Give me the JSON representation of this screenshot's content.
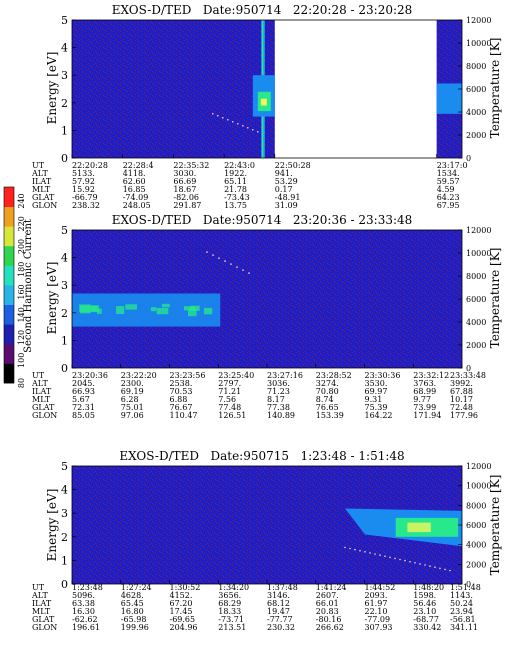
{
  "colorbar": {
    "label": "Second Harmonic Current",
    "ticks": [
      "240",
      "220",
      "200",
      "180",
      "160",
      "140",
      "120",
      "100",
      "80"
    ],
    "colors": [
      "#000000",
      "#5b0a6e",
      "#1d1fae",
      "#1f5ee0",
      "#2ab3e6",
      "#25e0c0",
      "#2fd54d",
      "#d7e63b",
      "#f0a020",
      "#ff2020"
    ]
  },
  "colors": {
    "background": "#1c1ec8",
    "band": "#1a8cf0",
    "core": "#27e88a",
    "speckle": "#b01818",
    "hot": "#f1f55e"
  },
  "chart_data": [
    {
      "type": "heatmap",
      "title": "EXOS-D/TED   Date:950714   22:20:28 - 23:20:28",
      "ylabel": "Energy [eV]",
      "ylabel_right": "Temperature [K]",
      "ylim": [
        0,
        5
      ],
      "ylim_right": [
        0,
        12000
      ],
      "yticks": [
        "0",
        "1",
        "2",
        "3",
        "4",
        "5"
      ],
      "yticks_right": [
        "0",
        "2000",
        "4000",
        "6000",
        "8000",
        "10000",
        "12000"
      ],
      "x_ticks": [
        "22:20:28",
        "22:28:4",
        "22:35:32",
        "22:43:0",
        "22:50:28",
        "23:17:0"
      ],
      "data_gap": [
        "22:50:28",
        "23:17:0"
      ],
      "spike_time": "22:35:32",
      "enhanced_region": {
        "time": "22:50:28",
        "energy_range": [
          1.5,
          3.0
        ]
      },
      "rows": [
        {
          "label": "UT",
          "values": [
            "22:20:28",
            "22:28:4",
            "22:35:32",
            "22:43:0",
            "22:50:28",
            "23:17:0"
          ]
        },
        {
          "label": "ALT",
          "values": [
            "5133.",
            "4118.",
            "3030.",
            "1922.",
            "941.",
            "1534."
          ]
        },
        {
          "label": "ILAT",
          "values": [
            "57.92",
            "62.60",
            "66.69",
            "65.11",
            "53.29",
            "59.57"
          ]
        },
        {
          "label": "MLT",
          "values": [
            "15.92",
            "16.85",
            "18.67",
            "21.78",
            "0.17",
            "4.59"
          ]
        },
        {
          "label": "GLAT",
          "values": [
            "-66.79",
            "-74.09",
            "-82.06",
            "-73.43",
            "-48.91",
            "64.23"
          ]
        },
        {
          "label": "GLON",
          "values": [
            "238.32",
            "248.05",
            "291.87",
            "13.75",
            "31.09",
            "67.95"
          ]
        }
      ]
    },
    {
      "type": "heatmap",
      "title": "EXOS-D/TED   Date:950714   23:20:36 - 23:33:48",
      "ylabel": "Energy [eV]",
      "ylabel_right": "Temperature [K]",
      "ylim": [
        0,
        5
      ],
      "ylim_right": [
        0,
        12000
      ],
      "yticks": [
        "0",
        "1",
        "2",
        "3",
        "4",
        "5"
      ],
      "yticks_right": [
        "0",
        "2000",
        "4000",
        "6000",
        "8000",
        "10000",
        "12000"
      ],
      "x_ticks": [
        "23:20:36",
        "23:22:20",
        "23:23:56",
        "23:25:40",
        "23:27:16",
        "23:28:52",
        "23:30:36",
        "23:32:12",
        "23:33:48"
      ],
      "band": {
        "energy_range": [
          1.5,
          2.7
        ],
        "until": "23:25:40"
      },
      "rows": [
        {
          "label": "UT",
          "values": [
            "23:20:36",
            "23:22:20",
            "23:23:56",
            "23:25:40",
            "23:27:16",
            "23:28:52",
            "23:30:36",
            "23:32:12",
            "23:33:48"
          ]
        },
        {
          "label": "ALT",
          "values": [
            "2045.",
            "2300.",
            "2538.",
            "2797.",
            "3036.",
            "3274.",
            "3530.",
            "3763.",
            "3992."
          ]
        },
        {
          "label": "ILAT",
          "values": [
            "66.93",
            "69.19",
            "70.53",
            "71.21",
            "71.23",
            "70.80",
            "69.97",
            "68.99",
            "67.88"
          ]
        },
        {
          "label": "MLT",
          "values": [
            "5.67",
            "6.28",
            "6.88",
            "7.56",
            "8.17",
            "8.74",
            "9.31",
            "9.77",
            "10.17"
          ]
        },
        {
          "label": "GLAT",
          "values": [
            "72.31",
            "75.01",
            "76.67",
            "77.48",
            "77.38",
            "76.65",
            "75.39",
            "73.99",
            "72.48"
          ]
        },
        {
          "label": "GLON",
          "values": [
            "85.05",
            "97.06",
            "110.47",
            "126.51",
            "140.89",
            "153.39",
            "164.22",
            "171.94",
            "177.96"
          ]
        }
      ]
    },
    {
      "type": "heatmap",
      "title": "EXOS-D/TED   Date:950715   1:23:48 - 1:51:48",
      "ylabel": "Energy [eV]",
      "ylabel_right": "Temperature [K]",
      "ylim": [
        0,
        5
      ],
      "ylim_right": [
        0,
        12000
      ],
      "yticks": [
        "0",
        "1",
        "2",
        "3",
        "4",
        "5"
      ],
      "yticks_right": [
        "0",
        "2000",
        "4000",
        "6000",
        "8000",
        "10000",
        "12000"
      ],
      "x_ticks": [
        "1:23:48",
        "1:27:24",
        "1:30:52",
        "1:34:20",
        "1:37:48",
        "1:41:24",
        "1:44:52",
        "1:48:20",
        "1:51:48"
      ],
      "enhanced_region": {
        "from": "1:44:52",
        "energy_range": [
          1.6,
          3.2
        ]
      },
      "rows": [
        {
          "label": "UT",
          "values": [
            "1:23:48",
            "1:27:24",
            "1:30:52",
            "1:34:20",
            "1:37:48",
            "1:41:24",
            "1:44:52",
            "1:48:20",
            "1:51:48"
          ]
        },
        {
          "label": "ALT",
          "values": [
            "5096.",
            "4628.",
            "4152.",
            "3656.",
            "3146.",
            "2607.",
            "2093.",
            "1598.",
            "1143."
          ]
        },
        {
          "label": "ILAT",
          "values": [
            "63.38",
            "65.45",
            "67.20",
            "68.29",
            "68.12",
            "66.01",
            "61.97",
            "56.46",
            "50.24"
          ]
        },
        {
          "label": "MLT",
          "values": [
            "16.30",
            "16.80",
            "17.45",
            "18.33",
            "19.47",
            "20.83",
            "22.10",
            "23.10",
            "23.94"
          ]
        },
        {
          "label": "GLAT",
          "values": [
            "-62.62",
            "-65.98",
            "-69.65",
            "-73.71",
            "-77.77",
            "-80.16",
            "-77.09",
            "-68.77",
            "-56.81"
          ]
        },
        {
          "label": "GLON",
          "values": [
            "196.61",
            "199.96",
            "204.96",
            "213.51",
            "230.32",
            "266.62",
            "307.93",
            "330.42",
            "341.11"
          ]
        }
      ]
    }
  ]
}
